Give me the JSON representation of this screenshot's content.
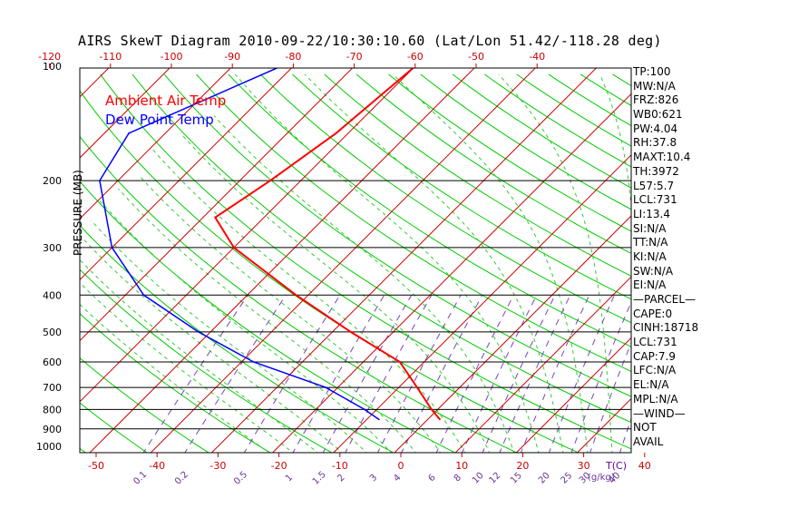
{
  "chart_data": {
    "type": "line",
    "title": "AIRS SkewT Diagram 2010-09-22/10:30:10.60 (Lat/Lon 51.42/-118.28 deg)",
    "ylabel": "PRESSURE (MB)",
    "y_scale": "log",
    "ylim": [
      1000,
      100
    ],
    "y_ticks": [
      100,
      200,
      300,
      400,
      500,
      600,
      700,
      800,
      900,
      1000
    ],
    "x_bottom_label": "T(C)",
    "x_bottom_ticks": [
      -50,
      -40,
      -30,
      -20,
      -10,
      0,
      10,
      20,
      30,
      40
    ],
    "x_top_ticks": [
      -120,
      -110,
      -100,
      -90,
      -80,
      -70,
      -60,
      -50,
      -40
    ],
    "mixing_ratio_label": "(g/kg)",
    "mixing_ratio_ticks": [
      "0.1",
      "0.2",
      "0.5",
      "1",
      "1.5",
      "2",
      "3",
      "4",
      "6",
      "8",
      "10",
      "12",
      "15",
      "20",
      "25",
      "30",
      "40"
    ],
    "grid": true,
    "series": [
      {
        "name": "Ambient Air Temp",
        "color": "#ff0000",
        "points": [
          {
            "p": 100,
            "t": -60
          },
          {
            "p": 150,
            "t": -62
          },
          {
            "p": 200,
            "t": -65
          },
          {
            "p": 250,
            "t": -68
          },
          {
            "p": 300,
            "t": -60
          },
          {
            "p": 400,
            "t": -42
          },
          {
            "p": 500,
            "t": -27
          },
          {
            "p": 600,
            "t": -14
          },
          {
            "p": 700,
            "t": -7
          },
          {
            "p": 800,
            "t": -1
          },
          {
            "p": 850,
            "t": 2
          }
        ]
      },
      {
        "name": "Dew Point Temp",
        "color": "#0000ff",
        "points": [
          {
            "p": 100,
            "t": -82
          },
          {
            "p": 150,
            "t": -96
          },
          {
            "p": 200,
            "t": -93
          },
          {
            "p": 300,
            "t": -80
          },
          {
            "p": 400,
            "t": -67
          },
          {
            "p": 500,
            "t": -52
          },
          {
            "p": 600,
            "t": -38
          },
          {
            "p": 700,
            "t": -22
          },
          {
            "p": 800,
            "t": -12
          },
          {
            "p": 850,
            "t": -8
          }
        ]
      }
    ],
    "indices": [
      "TP:100",
      "MW:N/A",
      "FRZ:826",
      "WB0:621",
      "PW:4.04",
      "RH:37.8",
      "MAXT:10.4",
      "TH:3972",
      "L57:5.7",
      "LCL:731",
      "LI:13.4",
      "SI:N/A",
      "TT:N/A",
      "KI:N/A",
      "SW:N/A",
      "EI:N/A",
      "—PARCEL—",
      "CAPE:0",
      "CINH:18718",
      "LCL:731",
      "CAP:7.9",
      "LFC:N/A",
      "EL:N/A",
      "MPL:N/A",
      "—WIND—",
      "NOT",
      "AVAIL"
    ]
  },
  "colors": {
    "temperature": "#ff0000",
    "dewpoint": "#0000ff",
    "isotherm": "#cc0000",
    "dry_adiabat": "#00cc00",
    "moist_adiabat": "#33cc33",
    "mixing_ratio": "#7744bb",
    "tick_text": "#cc0000",
    "mixing_text": "#663399"
  }
}
